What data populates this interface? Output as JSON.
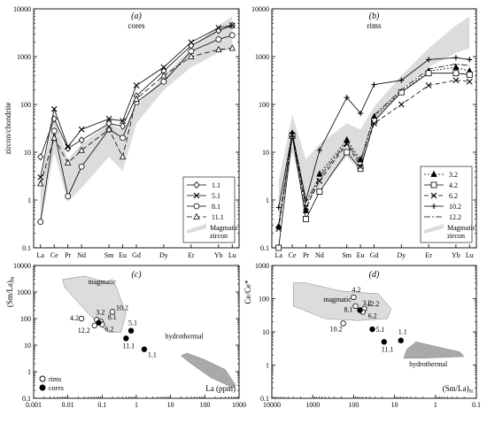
{
  "chart_data": [
    {
      "panel": "(a)",
      "subtitle": "cores",
      "type": "line",
      "ylabel": "zircon/chondrite",
      "yscale": "log",
      "ylim": [
        0.1,
        10000
      ],
      "yticks": [
        "0.1",
        "1",
        "10",
        "100",
        "1000",
        "10000"
      ],
      "categories": [
        "La",
        "Ce",
        "Pr",
        "Nd",
        "Sm",
        "Eu",
        "Gd",
        "Dy",
        "Er",
        "Yb",
        "Lu"
      ],
      "x": [
        0,
        1,
        2,
        3,
        5,
        6,
        7,
        9,
        11,
        13,
        14
      ],
      "band": {
        "label": "Magmatic zircon",
        "color": "#dcdcdc",
        "upper": [
          2.5,
          60,
          7,
          15,
          40,
          30,
          90,
          400,
          1500,
          4500,
          7000
        ],
        "lower": [
          0.3,
          10,
          0.9,
          1.8,
          8,
          4,
          40,
          200,
          600,
          1200,
          1500
        ]
      },
      "series": [
        {
          "name": "1.1",
          "marker": "diamond",
          "dash": "",
          "values": [
            8,
            50,
            12,
            18,
            40,
            35,
            150,
            500,
            1700,
            3500,
            4500
          ]
        },
        {
          "name": "5.1",
          "marker": "x",
          "dash": "",
          "values": [
            3,
            80,
            13,
            30,
            50,
            45,
            250,
            600,
            2000,
            4000,
            4500
          ]
        },
        {
          "name": "8.1",
          "marker": "circle",
          "dash": "",
          "values": [
            0.35,
            28,
            1.2,
            5,
            30,
            20,
            110,
            300,
            1300,
            2300,
            2800
          ]
        },
        {
          "name": "11.1",
          "marker": "triangle",
          "dash": "6,3",
          "values": [
            2.2,
            20,
            6,
            11,
            30,
            8,
            130,
            400,
            1000,
            1400,
            1500
          ]
        }
      ]
    },
    {
      "panel": "(b)",
      "subtitle": "rims",
      "type": "line",
      "yscale": "log",
      "ylim": [
        0.1,
        10000
      ],
      "yticks": [
        "0.1",
        "1",
        "10",
        "100",
        "1000",
        "10000"
      ],
      "categories": [
        "La",
        "Ce",
        "Pr",
        "Nd",
        "Sm",
        "Eu",
        "Gd",
        "Dy",
        "Er",
        "Yb",
        "Lu"
      ],
      "x": [
        0,
        1,
        2,
        3,
        5,
        6,
        7,
        9,
        11,
        13,
        14
      ],
      "band": {
        "label": "Magmatic zircon",
        "color": "#dcdcdc",
        "upper": [
          2.5,
          60,
          7,
          15,
          40,
          30,
          90,
          400,
          1500,
          4500,
          7000
        ],
        "lower": [
          0.3,
          10,
          0.9,
          1.8,
          8,
          4,
          40,
          200,
          600,
          1200,
          1500
        ]
      },
      "series": [
        {
          "name": "3.2",
          "marker": "filled-triangle",
          "dash": "2,2",
          "values": [
            0.28,
            25,
            0.6,
            3.5,
            18,
            7,
            55,
            180,
            500,
            600,
            500
          ]
        },
        {
          "name": "4.2",
          "marker": "square",
          "dash": "",
          "values": [
            0.1,
            22,
            0.4,
            1.5,
            10,
            4.5,
            45,
            180,
            450,
            450,
            420
          ]
        },
        {
          "name": "6.2",
          "marker": "x",
          "dash": "5,3",
          "values": [
            0.25,
            23,
            0.7,
            2.5,
            15,
            5,
            40,
            100,
            250,
            320,
            300
          ]
        },
        {
          "name": "10.2",
          "marker": "plus",
          "dash": "",
          "values": [
            0.7,
            25,
            1,
            11,
            140,
            65,
            260,
            320,
            870,
            950,
            870
          ]
        },
        {
          "name": "12.2",
          "marker": "none",
          "dash": "7,2,2,2",
          "values": [
            0.3,
            25,
            0.9,
            3,
            16,
            6,
            60,
            200,
            550,
            700,
            650
          ]
        }
      ]
    },
    {
      "panel": "(c)",
      "type": "scatter",
      "ylabel": "(Sm/La)",
      "ylabel_sub": "N",
      "xlabel": "La (ppm)",
      "xscale": "log",
      "yscale": "log",
      "xlim": [
        0.001,
        1000
      ],
      "ylim": [
        0.1,
        10000
      ],
      "xticks": [
        "0.001",
        "0.01",
        "0.1",
        "1",
        "10",
        "100",
        "1000"
      ],
      "yticks": [
        "0.1",
        "1",
        "10",
        "100",
        "1000",
        "10000"
      ],
      "regions": [
        {
          "label": "magmatic",
          "color": "#dcdcdc",
          "points": [
            [
              0.007,
              3000
            ],
            [
              0.03,
              4000
            ],
            [
              0.25,
              1800
            ],
            [
              0.5,
              150
            ],
            [
              0.35,
              30
            ],
            [
              0.15,
              30
            ],
            [
              0.04,
              150
            ],
            [
              0.008,
              1500
            ]
          ]
        },
        {
          "label": "hydrothermal",
          "color": "#a9a9a9",
          "points": [
            [
              30,
              5
            ],
            [
              90,
              3
            ],
            [
              400,
              1.2
            ],
            [
              800,
              0.3
            ],
            [
              650,
              0.25
            ],
            [
              150,
              0.6
            ],
            [
              40,
              2
            ],
            [
              20,
              4
            ]
          ]
        }
      ],
      "points": [
        {
          "label": "4.2",
          "type": "rims",
          "x": 0.025,
          "y": 100
        },
        {
          "label": "3.2",
          "type": "rims",
          "x": 0.07,
          "y": 90
        },
        {
          "label": "8.1",
          "type": "rims",
          "x": 0.09,
          "y": 80
        },
        {
          "label": "10.2",
          "type": "rims",
          "x": 0.2,
          "y": 180
        },
        {
          "label": "12.2",
          "type": "rims",
          "x": 0.06,
          "y": 55
        },
        {
          "label": "6.2",
          "type": "rims",
          "x": 0.1,
          "y": 60
        },
        {
          "label": "8.1",
          "type": "cores",
          "x": 0.08,
          "y": 70
        },
        {
          "label": "5.1",
          "type": "cores",
          "x": 0.7,
          "y": 35
        },
        {
          "label": "11.1",
          "type": "cores",
          "x": 0.5,
          "y": 18
        },
        {
          "label": "1.1",
          "type": "cores",
          "x": 1.7,
          "y": 7
        }
      ],
      "legend": [
        {
          "label": "rims",
          "marker": "open-circle"
        },
        {
          "label": "cores",
          "marker": "filled-circle"
        }
      ]
    },
    {
      "panel": "(d)",
      "type": "scatter",
      "ylabel": "Ce/Ce*",
      "xlabel": "(Sm/La)",
      "xlabel_sub": "N",
      "xscale": "log-reversed",
      "yscale": "log",
      "xlim": [
        10000,
        0.1
      ],
      "ylim": [
        0.1,
        1000
      ],
      "xticks": [
        "10000",
        "1000",
        "100",
        "10",
        "1",
        "0.1"
      ],
      "yticks": [
        "0.1",
        "1",
        "10",
        "100",
        "1000"
      ],
      "regions": [
        {
          "label": "magmatic",
          "color": "#dcdcdc",
          "points": [
            [
              3000,
              300
            ],
            [
              1500,
              300
            ],
            [
              200,
              170
            ],
            [
              25,
              140
            ],
            [
              12,
              50
            ],
            [
              15,
              25
            ],
            [
              80,
              22
            ],
            [
              500,
              25
            ],
            [
              3000,
              60
            ]
          ]
        },
        {
          "label": "hydrothermal",
          "color": "#a9a9a9",
          "points": [
            [
              3,
              5
            ],
            [
              0.25,
              2.5
            ],
            [
              0.2,
              1.8
            ],
            [
              2,
              1.6
            ],
            [
              6,
              1.6
            ],
            [
              5,
              3
            ]
          ]
        }
      ],
      "points": [
        {
          "label": "4.2",
          "type": "rims",
          "x": 100,
          "y": 110
        },
        {
          "label": "12.2",
          "type": "rims",
          "x": 55,
          "y": 50
        },
        {
          "label": "3.2",
          "type": "rims",
          "x": 90,
          "y": 60
        },
        {
          "label": "6.2",
          "type": "rims",
          "x": 60,
          "y": 40
        },
        {
          "label": "8.1",
          "type": "cores",
          "x": 70,
          "y": 45
        },
        {
          "label": "10.2",
          "type": "rims",
          "x": 180,
          "y": 18
        },
        {
          "label": "5.1",
          "type": "cores",
          "x": 35,
          "y": 12
        },
        {
          "label": "11.1",
          "type": "cores",
          "x": 18,
          "y": 5
        },
        {
          "label": "1.1",
          "type": "cores",
          "x": 7,
          "y": 5.5
        }
      ]
    }
  ]
}
